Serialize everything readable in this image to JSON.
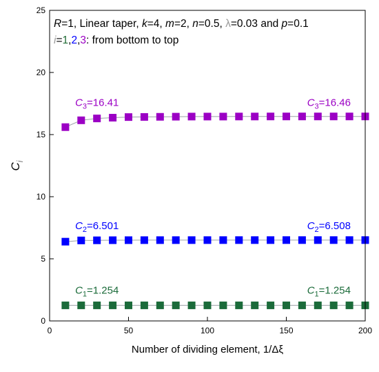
{
  "chart_data": {
    "type": "scatter",
    "xlabel": "Number of dividing element, 1/Δξ",
    "ylabel": "C",
    "ylabel_sub": "i",
    "xlim": [
      0,
      200
    ],
    "ylim": [
      0,
      25
    ],
    "xticks": [
      0,
      50,
      100,
      150,
      200
    ],
    "yticks": [
      0,
      5,
      10,
      15,
      20,
      25
    ],
    "grid": false,
    "header": {
      "line1": [
        {
          "t": "R",
          "i": true
        },
        {
          "t": "=1, Linear taper, "
        },
        {
          "t": "k",
          "i": true
        },
        {
          "t": "=4, "
        },
        {
          "t": "m",
          "i": true
        },
        {
          "t": "=2, "
        },
        {
          "t": "n",
          "i": true
        },
        {
          "t": "=0.5, "
        },
        {
          "t": "λ",
          "color": "#999999"
        },
        {
          "t": "=0.03 and "
        },
        {
          "t": "p",
          "i": true
        },
        {
          "t": "=0.1"
        }
      ],
      "line2": [
        {
          "t": "i",
          "i": true,
          "color": "#999999"
        },
        {
          "t": "="
        },
        {
          "t": "1",
          "color": "#1f6b34"
        },
        {
          "t": ","
        },
        {
          "t": "2",
          "color": "#0000ff"
        },
        {
          "t": ","
        },
        {
          "t": "3",
          "color": "#9b00c4"
        },
        {
          "t": ": from bottom to top"
        }
      ]
    },
    "x": [
      10,
      20,
      30,
      40,
      50,
      60,
      70,
      80,
      90,
      100,
      110,
      120,
      130,
      140,
      150,
      160,
      170,
      180,
      190,
      200
    ],
    "series": [
      {
        "color": "#1b6b3a",
        "values": [
          1.254,
          1.254,
          1.254,
          1.254,
          1.254,
          1.254,
          1.254,
          1.254,
          1.254,
          1.254,
          1.254,
          1.254,
          1.254,
          1.254,
          1.254,
          1.254,
          1.254,
          1.254,
          1.254,
          1.254
        ],
        "labels": [
          {
            "sym": "C",
            "sub": "1",
            "val": "=1.254",
            "x": 30,
            "y": 2.2
          },
          {
            "sym": "C",
            "sub": "1",
            "val": "=1.254",
            "x": 177,
            "y": 2.2
          }
        ]
      },
      {
        "color": "#0000ff",
        "values": [
          6.38,
          6.48,
          6.49,
          6.498,
          6.501,
          6.503,
          6.504,
          6.505,
          6.506,
          6.506,
          6.507,
          6.507,
          6.507,
          6.507,
          6.508,
          6.508,
          6.508,
          6.508,
          6.508,
          6.508
        ],
        "labels": [
          {
            "sym": "C",
            "sub": "2",
            "val": "=6.501",
            "x": 30,
            "y": 7.4
          },
          {
            "sym": "C",
            "sub": "2",
            "val": "=6.508",
            "x": 177,
            "y": 7.4
          }
        ]
      },
      {
        "color": "#9b00c4",
        "values": [
          15.6,
          16.15,
          16.3,
          16.36,
          16.41,
          16.42,
          16.43,
          16.44,
          16.45,
          16.45,
          16.45,
          16.455,
          16.455,
          16.46,
          16.46,
          16.46,
          16.46,
          16.46,
          16.46,
          16.46
        ],
        "labels": [
          {
            "sym": "C",
            "sub": "3",
            "val": "=16.41",
            "x": 30,
            "y": 17.3
          },
          {
            "sym": "C",
            "sub": "3",
            "val": "=16.46",
            "x": 177,
            "y": 17.3
          }
        ]
      }
    ]
  }
}
